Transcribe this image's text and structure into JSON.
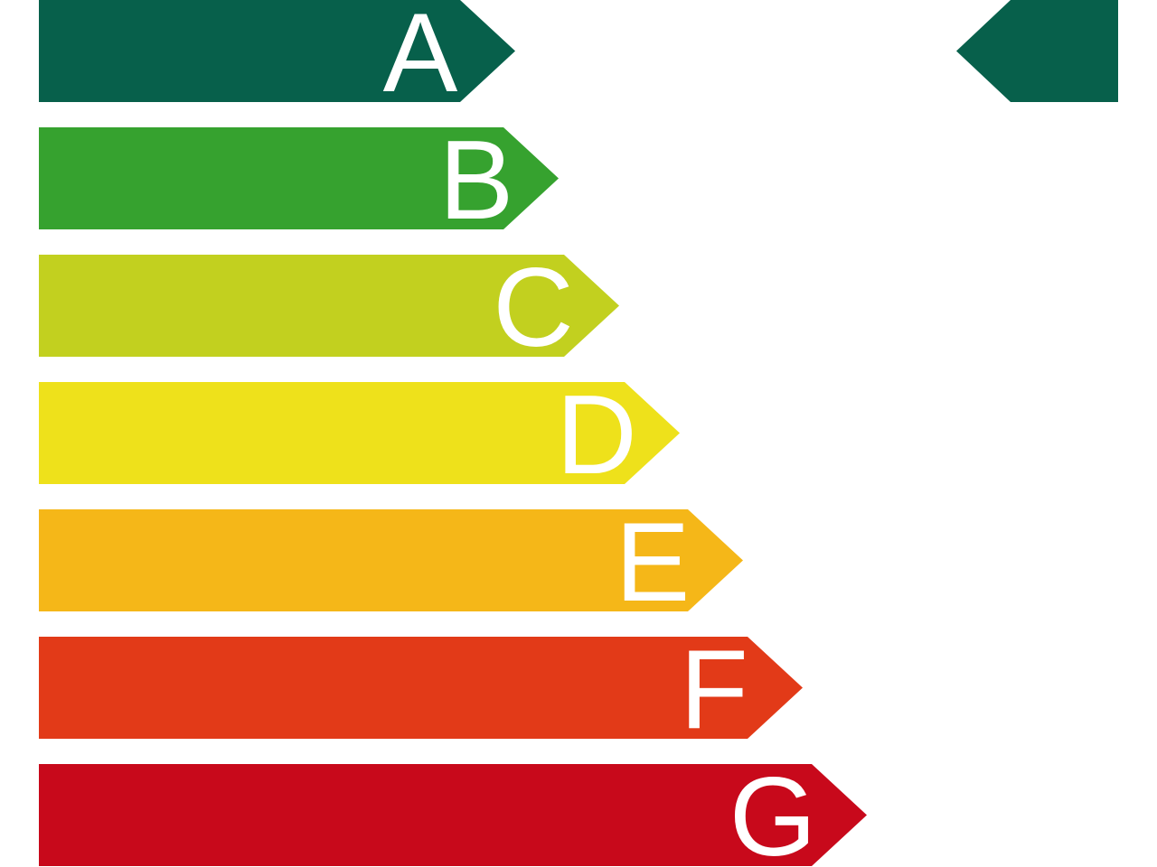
{
  "energy_label": {
    "classes": [
      {
        "letter": "A",
        "color": "#07604B"
      },
      {
        "letter": "B",
        "color": "#36A22F"
      },
      {
        "letter": "C",
        "color": "#C2D01F"
      },
      {
        "letter": "D",
        "color": "#EEE11B"
      },
      {
        "letter": "E",
        "color": "#F5B718"
      },
      {
        "letter": "F",
        "color": "#E23A18"
      },
      {
        "letter": "G",
        "color": "#C8091B"
      }
    ],
    "indicator": {
      "points_to": "A",
      "color": "#07604B"
    }
  }
}
